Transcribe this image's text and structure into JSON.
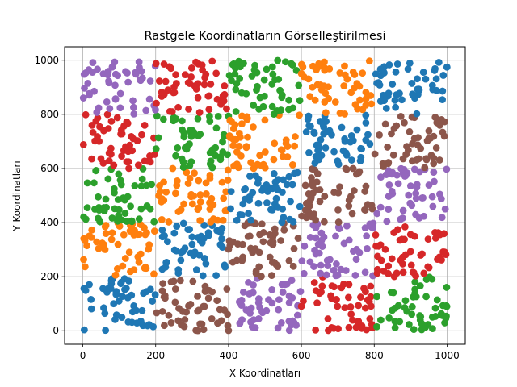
{
  "chart_data": {
    "type": "scatter",
    "title": "Rastgele Koordinatların Görselleştirilmesi",
    "xlabel": "X Koordinatları",
    "ylabel": "Y Koordinatları",
    "xlim": [
      -50,
      1050
    ],
    "ylim": [
      -50,
      1050
    ],
    "xticks": [
      0,
      200,
      400,
      600,
      800,
      1000
    ],
    "yticks": [
      0,
      200,
      400,
      600,
      800,
      1000
    ],
    "grid": true,
    "legend": "none",
    "point_count_per_cluster": 50,
    "palette": {
      "blue": "#1f77b4",
      "orange": "#ff7f0e",
      "green": "#2ca02c",
      "red": "#d62728",
      "purple": "#9467bd",
      "brown": "#8c564b"
    },
    "clusters": [
      {
        "color": "blue",
        "x": [
          0,
          200
        ],
        "y": [
          0,
          200
        ]
      },
      {
        "color": "brown",
        "x": [
          200,
          400
        ],
        "y": [
          0,
          200
        ]
      },
      {
        "color": "purple",
        "x": [
          400,
          600
        ],
        "y": [
          0,
          200
        ]
      },
      {
        "color": "red",
        "x": [
          600,
          800
        ],
        "y": [
          0,
          200
        ]
      },
      {
        "color": "green",
        "x": [
          800,
          1000
        ],
        "y": [
          0,
          200
        ]
      },
      {
        "color": "orange",
        "x": [
          0,
          200
        ],
        "y": [
          200,
          400
        ]
      },
      {
        "color": "blue",
        "x": [
          200,
          400
        ],
        "y": [
          200,
          400
        ]
      },
      {
        "color": "brown",
        "x": [
          400,
          600
        ],
        "y": [
          200,
          400
        ]
      },
      {
        "color": "purple",
        "x": [
          600,
          800
        ],
        "y": [
          200,
          400
        ]
      },
      {
        "color": "red",
        "x": [
          800,
          1000
        ],
        "y": [
          200,
          400
        ]
      },
      {
        "color": "green",
        "x": [
          0,
          200
        ],
        "y": [
          400,
          600
        ]
      },
      {
        "color": "orange",
        "x": [
          200,
          400
        ],
        "y": [
          400,
          600
        ]
      },
      {
        "color": "blue",
        "x": [
          400,
          600
        ],
        "y": [
          400,
          600
        ]
      },
      {
        "color": "brown",
        "x": [
          600,
          800
        ],
        "y": [
          400,
          600
        ]
      },
      {
        "color": "purple",
        "x": [
          800,
          1000
        ],
        "y": [
          400,
          600
        ]
      },
      {
        "color": "red",
        "x": [
          0,
          200
        ],
        "y": [
          600,
          800
        ]
      },
      {
        "color": "green",
        "x": [
          200,
          400
        ],
        "y": [
          600,
          800
        ]
      },
      {
        "color": "orange",
        "x": [
          400,
          600
        ],
        "y": [
          600,
          800
        ]
      },
      {
        "color": "blue",
        "x": [
          600,
          800
        ],
        "y": [
          600,
          800
        ]
      },
      {
        "color": "brown",
        "x": [
          800,
          1000
        ],
        "y": [
          600,
          800
        ]
      },
      {
        "color": "purple",
        "x": [
          0,
          200
        ],
        "y": [
          800,
          1000
        ]
      },
      {
        "color": "red",
        "x": [
          200,
          400
        ],
        "y": [
          800,
          1000
        ]
      },
      {
        "color": "green",
        "x": [
          400,
          600
        ],
        "y": [
          800,
          1000
        ]
      },
      {
        "color": "orange",
        "x": [
          600,
          800
        ],
        "y": [
          800,
          1000
        ]
      },
      {
        "color": "blue",
        "x": [
          800,
          1000
        ],
        "y": [
          800,
          1000
        ]
      }
    ]
  }
}
